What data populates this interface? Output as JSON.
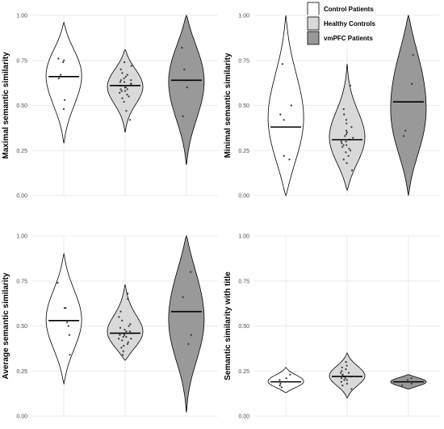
{
  "colors": {
    "control": "#ffffff",
    "healthy": "#d9d9d9",
    "vmpfc": "#999999",
    "outline": "#000000",
    "point": "#333333",
    "grid": "#ebebeb"
  },
  "legend": {
    "placement": "top-right",
    "entries": [
      {
        "label": "Control Patients",
        "color": "#ffffff"
      },
      {
        "label": "Healthy Controls",
        "color": "#d9d9d9"
      },
      {
        "label": "vmPFC Patients",
        "color": "#999999"
      }
    ]
  },
  "chart_data": [
    {
      "type": "violin",
      "ylabel": "Maximal semantic similarity",
      "ylim": [
        0,
        1
      ],
      "yticks": [
        "0.00",
        "0.25",
        "0.50",
        "0.75",
        "1.00"
      ],
      "series": [
        {
          "name": "Control Patients",
          "median": 0.66,
          "range": [
            0.29,
            0.96
          ],
          "points": [
            0.48,
            0.53,
            0.65,
            0.67,
            0.74,
            0.75,
            0.76
          ]
        },
        {
          "name": "Healthy Controls",
          "median": 0.61,
          "range": [
            0.35,
            0.81
          ],
          "points": [
            0.42,
            0.47,
            0.52,
            0.54,
            0.55,
            0.56,
            0.57,
            0.58,
            0.58,
            0.59,
            0.59,
            0.6,
            0.6,
            0.61,
            0.61,
            0.62,
            0.62,
            0.63,
            0.63,
            0.64,
            0.64,
            0.65,
            0.66,
            0.67,
            0.68,
            0.7,
            0.72,
            0.74
          ]
        },
        {
          "name": "vmPFC Patients",
          "median": 0.64,
          "range": [
            0.17,
            1.0
          ],
          "points": [
            0.44,
            0.6,
            0.7,
            0.82
          ]
        }
      ]
    },
    {
      "type": "violin",
      "ylabel": "Minimal semantic similarity",
      "ylim": [
        0,
        1
      ],
      "yticks": [
        "0.00",
        "0.25",
        "0.50",
        "0.75",
        "1.00"
      ],
      "series": [
        {
          "name": "Control Patients",
          "median": 0.38,
          "range": [
            0.0,
            1.0
          ],
          "points": [
            0.2,
            0.22,
            0.42,
            0.45,
            0.5,
            0.73
          ]
        },
        {
          "name": "Healthy Controls",
          "median": 0.31,
          "range": [
            0.03,
            0.73
          ],
          "points": [
            0.14,
            0.18,
            0.2,
            0.22,
            0.24,
            0.25,
            0.26,
            0.27,
            0.28,
            0.28,
            0.29,
            0.3,
            0.3,
            0.31,
            0.31,
            0.32,
            0.33,
            0.34,
            0.35,
            0.36,
            0.38,
            0.4,
            0.42,
            0.45,
            0.48,
            0.61
          ]
        },
        {
          "name": "vmPFC Patients",
          "median": 0.52,
          "range": [
            0.0,
            1.0
          ],
          "points": [
            0.33,
            0.36,
            0.62,
            0.78
          ]
        }
      ]
    },
    {
      "type": "violin",
      "ylabel": "Average semantic similarity",
      "ylim": [
        0,
        1
      ],
      "yticks": [
        "0.00",
        "0.25",
        "0.50",
        "0.75",
        "1.00"
      ],
      "series": [
        {
          "name": "Control Patients",
          "median": 0.53,
          "range": [
            0.18,
            0.9
          ],
          "points": [
            0.34,
            0.45,
            0.5,
            0.52,
            0.6,
            0.6,
            0.74
          ]
        },
        {
          "name": "Healthy Controls",
          "median": 0.46,
          "range": [
            0.31,
            0.73
          ],
          "points": [
            0.34,
            0.36,
            0.38,
            0.39,
            0.4,
            0.41,
            0.42,
            0.43,
            0.43,
            0.44,
            0.44,
            0.45,
            0.45,
            0.46,
            0.46,
            0.47,
            0.47,
            0.48,
            0.49,
            0.5,
            0.51,
            0.53,
            0.55,
            0.58,
            0.65,
            0.68
          ]
        },
        {
          "name": "vmPFC Patients",
          "median": 0.58,
          "range": [
            0.02,
            1.0
          ],
          "points": [
            0.4,
            0.45,
            0.66,
            0.8
          ]
        }
      ]
    },
    {
      "type": "violin",
      "ylabel": "Semantic similarity with title",
      "ylim": [
        0,
        1
      ],
      "yticks": [
        "0.00",
        "0.25",
        "0.50",
        "0.75",
        "1.00"
      ],
      "series": [
        {
          "name": "Control Patients",
          "median": 0.19,
          "range": [
            0.13,
            0.27
          ],
          "points": [
            0.16,
            0.17,
            0.18,
            0.2,
            0.21,
            0.23
          ]
        },
        {
          "name": "Healthy Controls",
          "median": 0.22,
          "range": [
            0.1,
            0.35
          ],
          "points": [
            0.15,
            0.17,
            0.18,
            0.19,
            0.2,
            0.2,
            0.21,
            0.21,
            0.22,
            0.22,
            0.22,
            0.23,
            0.23,
            0.24,
            0.24,
            0.25,
            0.26,
            0.27,
            0.28,
            0.3
          ]
        },
        {
          "name": "vmPFC Patients",
          "median": 0.19,
          "range": [
            0.15,
            0.23
          ],
          "points": [
            0.17,
            0.18,
            0.2,
            0.21
          ]
        }
      ]
    }
  ]
}
